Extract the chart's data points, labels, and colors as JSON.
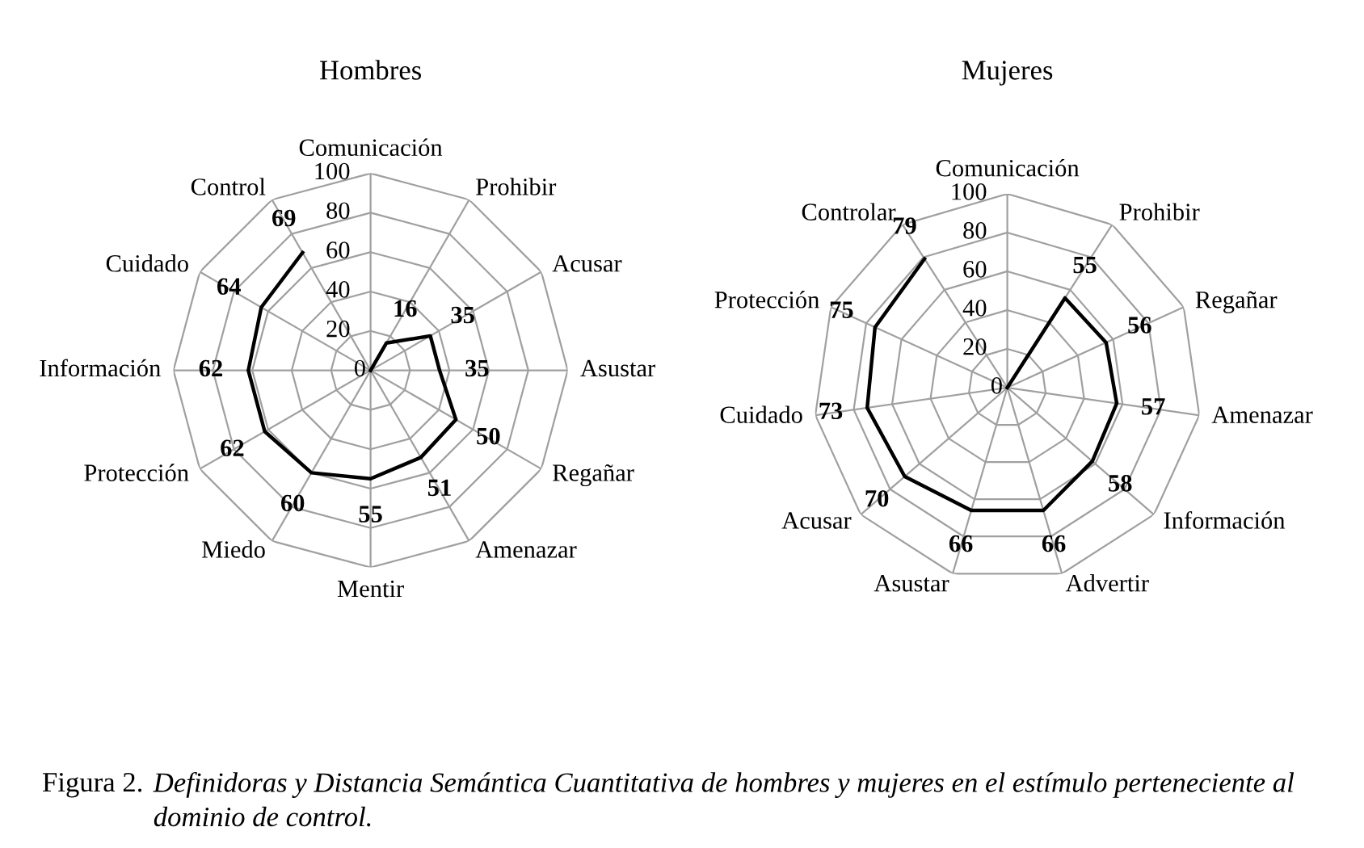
{
  "chart_data": [
    {
      "type": "radar",
      "title": "Hombres",
      "categories": [
        "Comunicación",
        "Prohibir",
        "Acusar",
        "Asustar",
        "Regañar",
        "Amenazar",
        "Mentir",
        "Miedo",
        "Protección",
        "Información",
        "Cuidado",
        "Control"
      ],
      "series": [
        {
          "color": "#000000",
          "values": [
            0,
            16,
            35,
            35,
            50,
            51,
            55,
            60,
            62,
            62,
            64,
            69
          ],
          "value_labels": [
            null,
            "16",
            "35",
            "35",
            "50",
            "51",
            "55",
            "60",
            "62",
            "62",
            "64",
            "69"
          ]
        }
      ],
      "ylim": [
        0,
        100
      ],
      "yticks": [
        0,
        20,
        40,
        60,
        80,
        100
      ],
      "grid": true
    },
    {
      "type": "radar",
      "title": "Mujeres",
      "categories": [
        "Comunicación",
        "Prohibir",
        "Regañar",
        "Amenazar",
        "Información",
        "Advertir",
        "Asustar",
        "Acusar",
        "Cuidado",
        "Protección",
        "Controlar"
      ],
      "series": [
        {
          "color": "#000000",
          "values": [
            0,
            55,
            56,
            57,
            58,
            66,
            66,
            70,
            73,
            75,
            79
          ],
          "value_labels": [
            null,
            "55",
            "56",
            "57",
            "58",
            "66",
            "66",
            "70",
            "73",
            "75",
            "79"
          ]
        }
      ],
      "ylim": [
        0,
        100
      ],
      "yticks": [
        0,
        20,
        40,
        60,
        80,
        100
      ],
      "grid": true,
      "annotations": [
        "Figura 2.",
        "Definidoras y Distancia Semántica Cuantitativa de hombres y mujeres en el estímulo perteneciente al dominio de control."
      ]
    }
  ]
}
